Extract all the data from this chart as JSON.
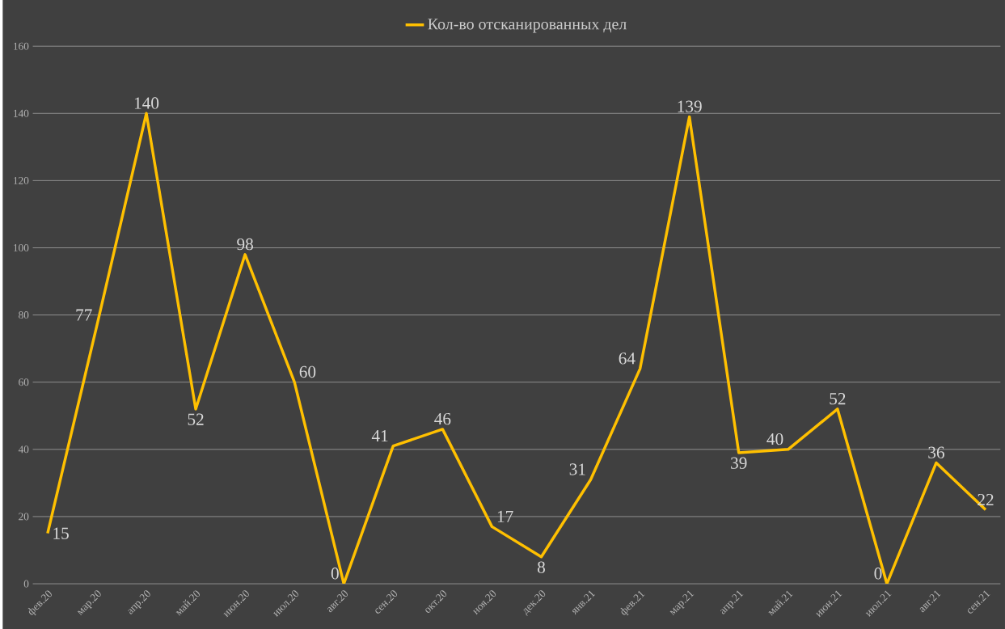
{
  "chart_data": {
    "type": "line",
    "categories": [
      "фев.20",
      "мар.20",
      "апр.20",
      "май.20",
      "июн.20",
      "июл.20",
      "авг.20",
      "сен.20",
      "окт.20",
      "ноя.20",
      "дек.20",
      "янв.21",
      "фев.21",
      "мар.21",
      "апр.21",
      "май.21",
      "июн.21",
      "июл.21",
      "авг.21",
      "сен.21"
    ],
    "series": [
      {
        "name": "Кол-во отсканированных дел",
        "color": "#ffc000",
        "values": [
          15,
          77,
          140,
          52,
          98,
          60,
          0,
          41,
          46,
          17,
          8,
          31,
          64,
          139,
          39,
          40,
          52,
          0,
          36,
          22
        ]
      }
    ],
    "ylim": [
      0,
      160
    ],
    "yticks": [
      0,
      20,
      40,
      60,
      80,
      100,
      120,
      140,
      160
    ],
    "grid": "y",
    "legend": "top",
    "data_labels": true,
    "marker": "none",
    "line_style": "solid"
  }
}
